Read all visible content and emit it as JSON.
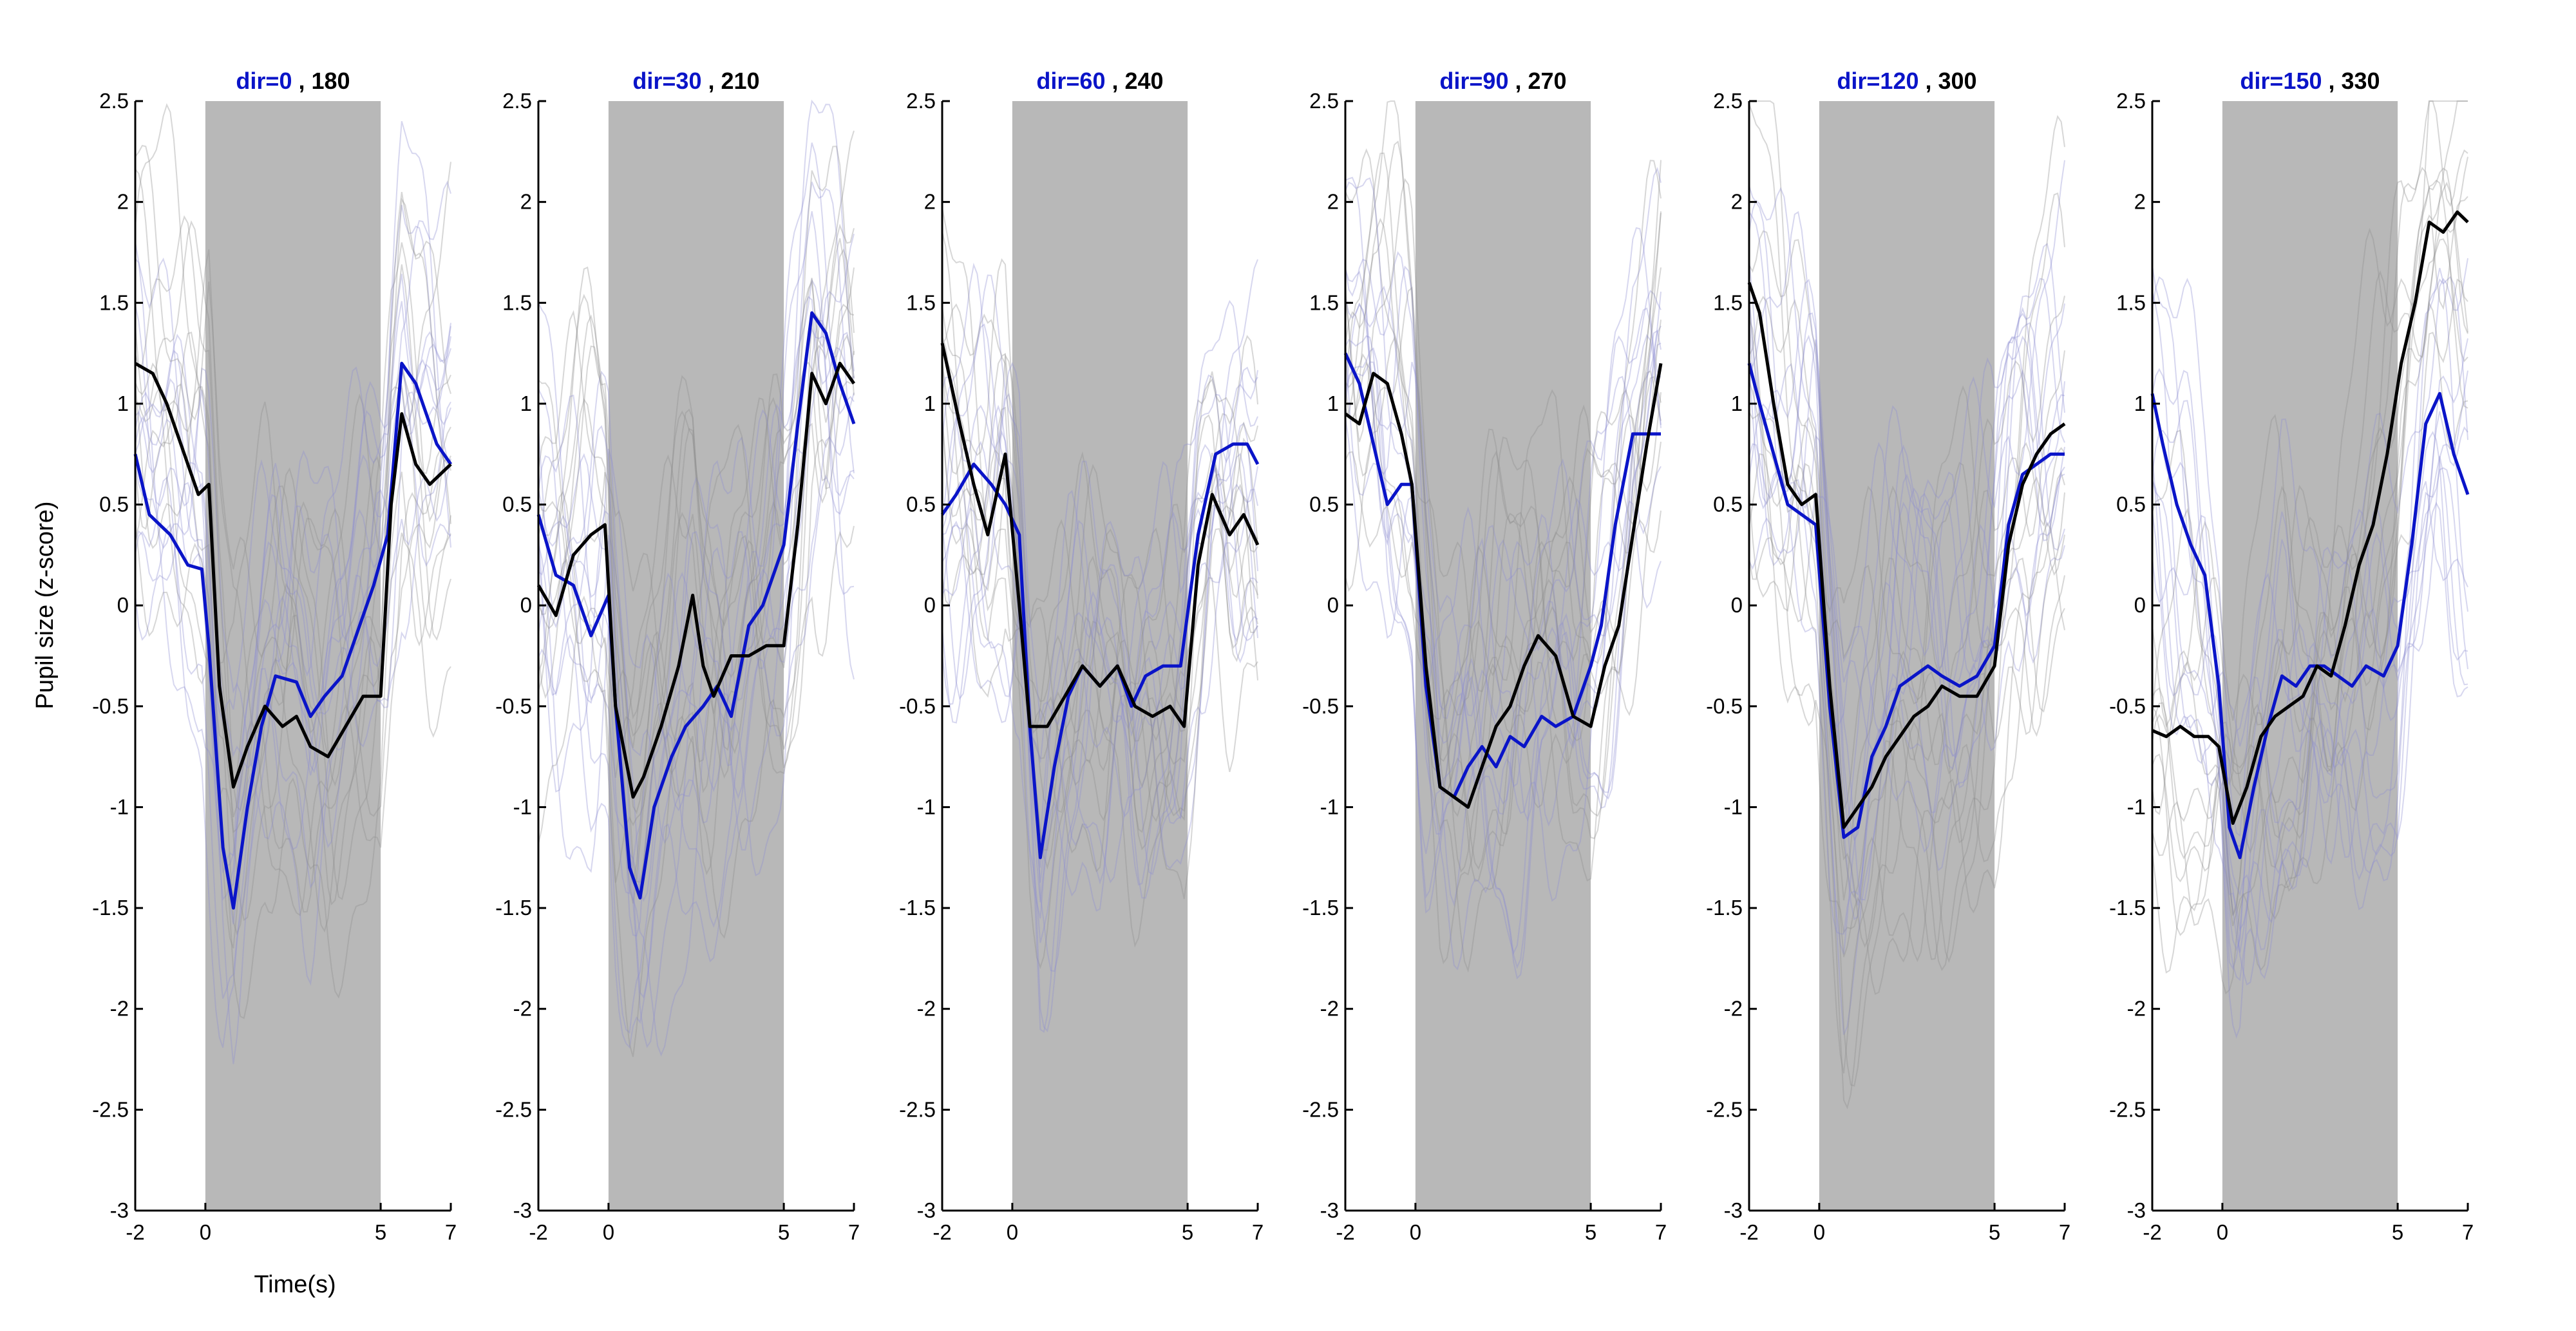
{
  "figure": {
    "ylabel": "Pupil size (z-score)",
    "xlabel": "Time(s)"
  },
  "colors": {
    "series_a": "#0a14c8",
    "series_b": "#000000",
    "shade": "#b8b8b8",
    "trial_a": "#8c8cd2",
    "trial_b": "#8c8c8c"
  },
  "chart_data": [
    {
      "type": "line",
      "title_a": "dir=0",
      "title_sep": " , ",
      "title_b": "180",
      "xlim": [
        -2,
        7
      ],
      "ylim": [
        -3,
        2.5
      ],
      "xticks": [
        "-2",
        "0",
        "5",
        "7"
      ],
      "yticks": [
        "2.5",
        "2",
        "1.5",
        "1",
        "0.5",
        "0",
        "-0.5",
        "-1",
        "-1.5",
        "-2",
        "-2.5",
        "-3"
      ],
      "shaded_interval": [
        0,
        5
      ],
      "series": [
        {
          "color": "#0a14c8",
          "x": [
            -2,
            -1.6,
            -1,
            -0.5,
            -0.1,
            0.1,
            0.5,
            0.8,
            1.2,
            1.6,
            2,
            2.6,
            3,
            3.4,
            3.9,
            4.3,
            4.8,
            5.2,
            5.6,
            6,
            6.3,
            6.6,
            7
          ],
          "y": [
            0.75,
            0.45,
            0.35,
            0.2,
            0.18,
            -0.2,
            -1.2,
            -1.5,
            -1.0,
            -0.6,
            -0.35,
            -0.38,
            -0.55,
            -0.45,
            -0.35,
            -0.15,
            0.1,
            0.35,
            1.2,
            1.1,
            0.95,
            0.8,
            0.7
          ]
        },
        {
          "color": "#000000",
          "x": [
            -2,
            -1.5,
            -1.1,
            -0.6,
            -0.2,
            0.1,
            0.4,
            0.8,
            1.2,
            1.7,
            2.2,
            2.6,
            3,
            3.5,
            4,
            4.5,
            5,
            5.3,
            5.6,
            6,
            6.4,
            7
          ],
          "y": [
            1.2,
            1.15,
            1.0,
            0.75,
            0.55,
            0.6,
            -0.4,
            -0.9,
            -0.7,
            -0.5,
            -0.6,
            -0.55,
            -0.7,
            -0.75,
            -0.6,
            -0.45,
            -0.45,
            0.5,
            0.95,
            0.7,
            0.6,
            0.7
          ]
        }
      ]
    },
    {
      "type": "line",
      "title_a": "dir=30",
      "title_sep": " , ",
      "title_b": "210",
      "xlim": [
        -2,
        7
      ],
      "ylim": [
        -3,
        2.5
      ],
      "xticks": [
        "-2",
        "0",
        "5",
        "7"
      ],
      "yticks": [
        "2.5",
        "2",
        "1.5",
        "1",
        "0.5",
        "0",
        "-0.5",
        "-1",
        "-1.5",
        "-2",
        "-2.5",
        "-3"
      ],
      "shaded_interval": [
        0,
        5
      ],
      "series": [
        {
          "color": "#0a14c8",
          "x": [
            -2,
            -1.5,
            -1,
            -0.5,
            0,
            0.2,
            0.6,
            0.9,
            1.3,
            1.8,
            2.2,
            2.7,
            3.1,
            3.5,
            4,
            4.4,
            5,
            5.4,
            5.8,
            6.2,
            6.6,
            7
          ],
          "y": [
            0.45,
            0.15,
            0.1,
            -0.15,
            0.05,
            -0.5,
            -1.3,
            -1.45,
            -1.0,
            -0.75,
            -0.6,
            -0.5,
            -0.4,
            -0.55,
            -0.1,
            0.0,
            0.3,
            0.9,
            1.45,
            1.35,
            1.1,
            0.9
          ]
        },
        {
          "color": "#000000",
          "x": [
            -2,
            -1.5,
            -1,
            -0.5,
            -0.1,
            0.2,
            0.7,
            1,
            1.5,
            2,
            2.4,
            2.7,
            3,
            3.5,
            4,
            4.5,
            5,
            5.4,
            5.8,
            6.2,
            6.6,
            7
          ],
          "y": [
            0.1,
            -0.05,
            0.25,
            0.35,
            0.4,
            -0.5,
            -0.95,
            -0.85,
            -0.6,
            -0.3,
            0.05,
            -0.3,
            -0.45,
            -0.25,
            -0.25,
            -0.2,
            -0.2,
            0.4,
            1.15,
            1.0,
            1.2,
            1.1
          ]
        }
      ]
    },
    {
      "type": "line",
      "title_a": "dir=60",
      "title_sep": " , ",
      "title_b": "240",
      "xlim": [
        -2,
        7
      ],
      "ylim": [
        -3,
        2.5
      ],
      "xticks": [
        "-2",
        "0",
        "5",
        "7"
      ],
      "yticks": [
        "2.5",
        "2",
        "1.5",
        "1",
        "0.5",
        "0",
        "-0.5",
        "-1",
        "-1.5",
        "-2",
        "-2.5",
        "-3"
      ],
      "shaded_interval": [
        0,
        5
      ],
      "series": [
        {
          "color": "#0a14c8",
          "x": [
            -2,
            -1.6,
            -1.1,
            -0.6,
            -0.2,
            0.2,
            0.5,
            0.8,
            1.2,
            1.6,
            2,
            2.5,
            3,
            3.4,
            3.8,
            4.3,
            4.8,
            5.3,
            5.8,
            6.3,
            6.7,
            7
          ],
          "y": [
            0.45,
            0.55,
            0.7,
            0.6,
            0.5,
            0.35,
            -0.6,
            -1.25,
            -0.8,
            -0.45,
            -0.3,
            -0.4,
            -0.3,
            -0.5,
            -0.35,
            -0.3,
            -0.3,
            0.35,
            0.75,
            0.8,
            0.8,
            0.7
          ]
        },
        {
          "color": "#000000",
          "x": [
            -2,
            -1.5,
            -1.1,
            -0.7,
            -0.2,
            0.2,
            0.5,
            1,
            1.5,
            2,
            2.5,
            3,
            3.5,
            4,
            4.5,
            4.9,
            5.3,
            5.7,
            6.2,
            6.6,
            7
          ],
          "y": [
            1.3,
            0.9,
            0.6,
            0.35,
            0.75,
            0.0,
            -0.6,
            -0.6,
            -0.45,
            -0.3,
            -0.4,
            -0.3,
            -0.5,
            -0.55,
            -0.5,
            -0.6,
            0.2,
            0.55,
            0.35,
            0.45,
            0.3
          ]
        }
      ]
    },
    {
      "type": "line",
      "title_a": "dir=90",
      "title_sep": " , ",
      "title_b": "270",
      "xlim": [
        -2,
        7
      ],
      "ylim": [
        -3,
        2.5
      ],
      "xticks": [
        "-2",
        "0",
        "5",
        "7"
      ],
      "yticks": [
        "2.5",
        "2",
        "1.5",
        "1",
        "0.5",
        "0",
        "-0.5",
        "-1",
        "-1.5",
        "-2",
        "-2.5",
        "-3"
      ],
      "shaded_interval": [
        0,
        5
      ],
      "series": [
        {
          "color": "#0a14c8",
          "x": [
            -2,
            -1.6,
            -1.2,
            -0.8,
            -0.4,
            -0.1,
            0.3,
            0.7,
            1.1,
            1.5,
            1.9,
            2.3,
            2.7,
            3.1,
            3.6,
            4,
            4.5,
            5,
            5.3,
            5.7,
            6.2,
            6.6,
            7
          ],
          "y": [
            1.25,
            1.1,
            0.8,
            0.5,
            0.6,
            0.6,
            -0.4,
            -0.9,
            -0.95,
            -0.8,
            -0.7,
            -0.8,
            -0.65,
            -0.7,
            -0.55,
            -0.6,
            -0.55,
            -0.3,
            -0.1,
            0.4,
            0.85,
            0.85,
            0.85
          ]
        },
        {
          "color": "#000000",
          "x": [
            -2,
            -1.6,
            -1.2,
            -0.8,
            -0.4,
            -0.1,
            0.3,
            0.7,
            1.1,
            1.5,
            1.9,
            2.3,
            2.7,
            3.1,
            3.5,
            4,
            4.5,
            5,
            5.4,
            5.8,
            6.2,
            6.6,
            7
          ],
          "y": [
            0.95,
            0.9,
            1.15,
            1.1,
            0.85,
            0.6,
            -0.3,
            -0.9,
            -0.95,
            -1.0,
            -0.8,
            -0.6,
            -0.5,
            -0.3,
            -0.15,
            -0.25,
            -0.55,
            -0.6,
            -0.3,
            -0.1,
            0.35,
            0.8,
            1.2
          ]
        }
      ]
    },
    {
      "type": "line",
      "title_a": "dir=120",
      "title_sep": " , ",
      "title_b": "300",
      "xlim": [
        -2,
        7
      ],
      "ylim": [
        -3,
        2.5
      ],
      "xticks": [
        "-2",
        "0",
        "5",
        "7"
      ],
      "yticks": [
        "2.5",
        "2",
        "1.5",
        "1",
        "0.5",
        "0",
        "-0.5",
        "-1",
        "-1.5",
        "-2",
        "-2.5",
        "-3"
      ],
      "shaded_interval": [
        0,
        5
      ],
      "series": [
        {
          "color": "#0a14c8",
          "x": [
            -2,
            -1.7,
            -1.3,
            -0.9,
            -0.5,
            -0.1,
            0.3,
            0.7,
            1.1,
            1.5,
            1.9,
            2.3,
            2.7,
            3.1,
            3.5,
            4,
            4.5,
            5,
            5.4,
            5.8,
            6.2,
            6.6,
            7
          ],
          "y": [
            1.2,
            1.0,
            0.75,
            0.5,
            0.45,
            0.4,
            -0.5,
            -1.15,
            -1.1,
            -0.75,
            -0.6,
            -0.4,
            -0.35,
            -0.3,
            -0.35,
            -0.4,
            -0.35,
            -0.2,
            0.4,
            0.65,
            0.7,
            0.75,
            0.75
          ]
        },
        {
          "color": "#000000",
          "x": [
            -2,
            -1.7,
            -1.3,
            -0.9,
            -0.5,
            -0.1,
            0.3,
            0.7,
            1.1,
            1.5,
            1.9,
            2.3,
            2.7,
            3.1,
            3.5,
            4,
            4.5,
            5,
            5.4,
            5.8,
            6.2,
            6.6,
            7
          ],
          "y": [
            1.6,
            1.45,
            1.0,
            0.6,
            0.5,
            0.55,
            -0.4,
            -1.1,
            -1.0,
            -0.9,
            -0.75,
            -0.65,
            -0.55,
            -0.5,
            -0.4,
            -0.45,
            -0.45,
            -0.3,
            0.3,
            0.6,
            0.75,
            0.85,
            0.9
          ]
        }
      ]
    },
    {
      "type": "line",
      "title_a": "dir=150",
      "title_sep": " , ",
      "title_b": "330",
      "xlim": [
        -2,
        7
      ],
      "ylim": [
        -3,
        2.5
      ],
      "xticks": [
        "-2",
        "0",
        "5",
        "7"
      ],
      "yticks": [
        "2.5",
        "2",
        "1.5",
        "1",
        "0.5",
        "0",
        "-0.5",
        "-1",
        "-1.5",
        "-2",
        "-2.5",
        "-3"
      ],
      "shaded_interval": [
        0,
        5
      ],
      "series": [
        {
          "color": "#0a14c8",
          "x": [
            -2,
            -1.7,
            -1.3,
            -0.9,
            -0.5,
            -0.1,
            0.2,
            0.5,
            0.9,
            1.3,
            1.7,
            2.1,
            2.5,
            2.9,
            3.3,
            3.7,
            4.1,
            4.6,
            5,
            5.4,
            5.8,
            6.2,
            6.6,
            7
          ],
          "y": [
            1.05,
            0.8,
            0.5,
            0.3,
            0.15,
            -0.4,
            -1.1,
            -1.25,
            -0.9,
            -0.6,
            -0.35,
            -0.4,
            -0.3,
            -0.3,
            -0.35,
            -0.4,
            -0.3,
            -0.35,
            -0.2,
            0.3,
            0.9,
            1.05,
            0.75,
            0.55
          ]
        },
        {
          "color": "#000000",
          "x": [
            -2,
            -1.6,
            -1.2,
            -0.8,
            -0.4,
            -0.1,
            0.3,
            0.7,
            1.1,
            1.5,
            1.9,
            2.3,
            2.7,
            3.1,
            3.5,
            3.9,
            4.3,
            4.7,
            5.1,
            5.5,
            5.9,
            6.3,
            6.7,
            7
          ],
          "y": [
            -0.62,
            -0.65,
            -0.6,
            -0.65,
            -0.65,
            -0.7,
            -1.08,
            -0.9,
            -0.65,
            -0.55,
            -0.5,
            -0.45,
            -0.3,
            -0.35,
            -0.1,
            0.2,
            0.4,
            0.75,
            1.2,
            1.5,
            1.9,
            1.85,
            1.95,
            1.9
          ]
        }
      ]
    }
  ]
}
